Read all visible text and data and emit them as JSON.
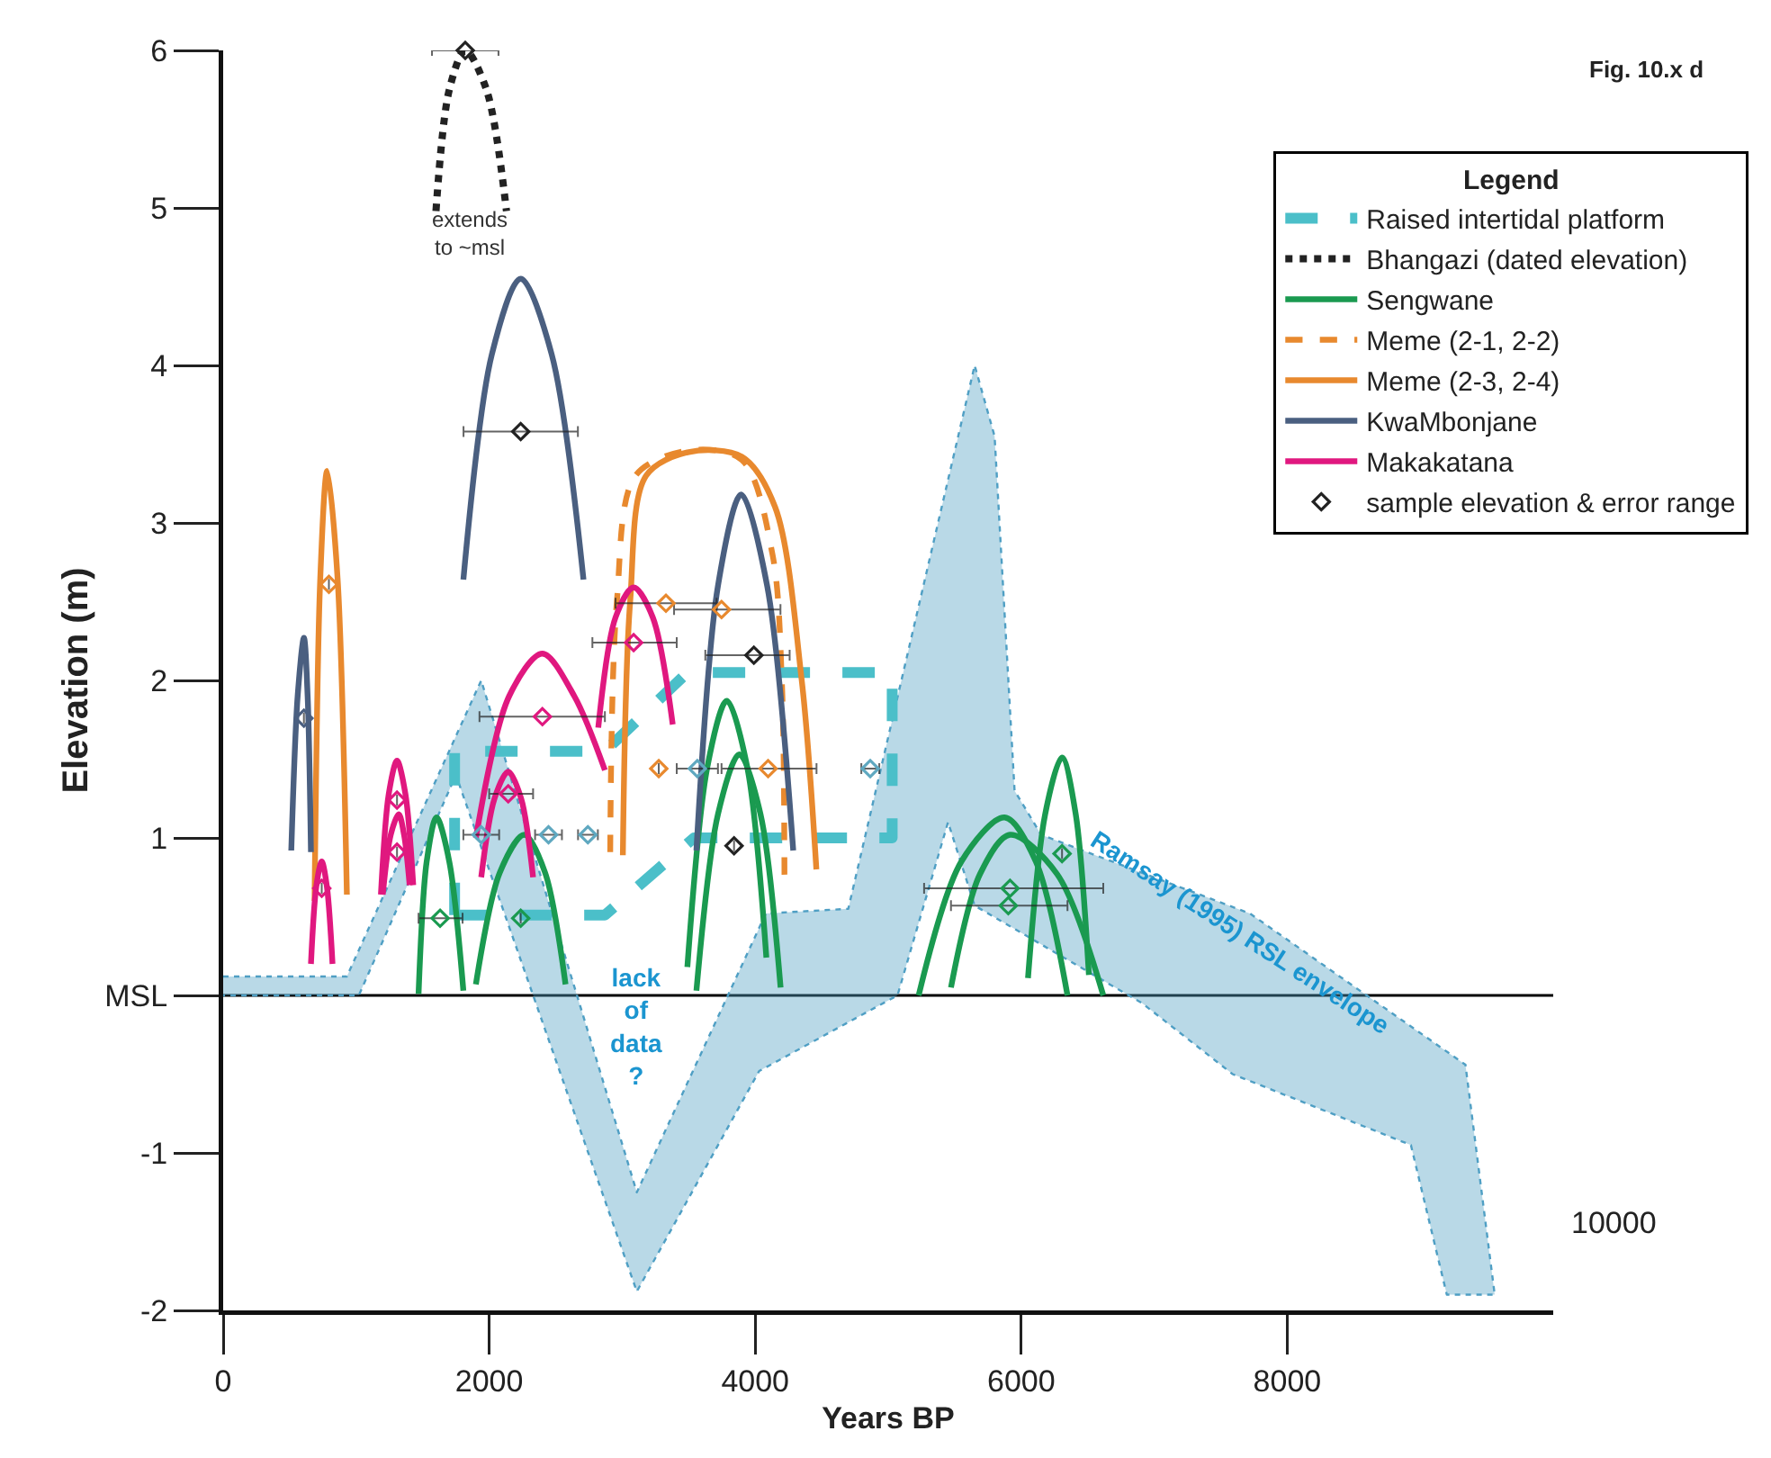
{
  "chart_data": {
    "type": "line",
    "xlabel": "Years BP",
    "ylabel": "Elevation (m)",
    "legend_title": "Legend",
    "legend": "top right",
    "grid": false,
    "line_style": "solid",
    "marker": "none",
    "xlim": [
      0,
      10000
    ],
    "ylim": [
      -2,
      6
    ],
    "xticks": [
      0,
      2000,
      4000,
      6000,
      8000
    ],
    "yticks": [
      -2,
      -1,
      {
        "value": 0,
        "label": "MSL"
      },
      1,
      2,
      3,
      4,
      5,
      6
    ],
    "ref_lines": [
      {
        "axis": "y",
        "value": 0,
        "color": "#000000"
      }
    ],
    "annotations": [
      "extends\nto ~msl",
      "lack\nof\ndata\n?",
      "10000",
      "Fig. 10.x d"
    ],
    "series": [
      {
        "type": "area",
        "name": "Ramsay (1995) RSL envelope",
        "color": "#4f9fc4",
        "line_style": "dotted",
        "x": [
          0,
          930,
          1940,
          3110,
          4080,
          4700,
          5650,
          5800,
          5950,
          6150,
          7720,
          9340,
          9560,
          9200,
          8930,
          7590,
          6910,
          5650,
          5450,
          5070,
          4030,
          3110,
          1750,
          1020,
          0
        ],
        "values": [
          0.12,
          0.12,
          2.0,
          -1.25,
          0.52,
          0.55,
          4.0,
          3.55,
          1.3,
          1.02,
          0.52,
          -0.44,
          -1.9,
          -1.9,
          -0.95,
          -0.5,
          -0.05,
          0.57,
          1.1,
          0,
          -0.48,
          -1.88,
          1.4,
          0,
          0
        ]
      },
      {
        "name": "Raised intertidal platform",
        "color": "#4bbfc9",
        "line_style": "dashed",
        "x": [
          1740,
          1740,
          2870,
          3490,
          5030,
          null,
          1740,
          2870,
          3540,
          5030,
          5030
        ],
        "values": [
          0.51,
          1.55,
          1.55,
          2.05,
          2.05,
          null,
          0.51,
          0.51,
          1.0,
          1.0,
          2.05
        ]
      },
      {
        "name": "Bhangazi (dated elevation)",
        "color": "#222222",
        "line_style": "dotted",
        "x": [
          1600,
          1700,
          1820,
          1980,
          2130
        ],
        "values": [
          4.98,
          5.75,
          6.0,
          5.75,
          4.98
        ]
      },
      {
        "name": "Sengwane",
        "color": "#1a9a50",
        "x": [
          1469,
          1530,
          1604,
          1700,
          1806,
          null,
          1900,
          2080,
          2264,
          2420,
          2574,
          null,
          3490,
          3640,
          3787,
          3940,
          4084,
          null,
          3558,
          3720,
          3881,
          4040,
          4191,
          null,
          5229,
          5550,
          5876,
          6110,
          6348,
          null,
          5472,
          5690,
          5916,
          6270,
          6617,
          null,
          6051,
          6180,
          6307,
          6410,
          6509
        ],
        "values": [
          0.01,
          0.85,
          1.13,
          0.85,
          0.03,
          null,
          0.07,
          0.78,
          1.02,
          0.78,
          0.07,
          null,
          0.18,
          1.45,
          1.87,
          1.45,
          0.24,
          null,
          0.03,
          1.15,
          1.53,
          1.15,
          0.05,
          null,
          0,
          0.85,
          1.13,
          0.85,
          0,
          null,
          0.05,
          0.77,
          1.02,
          0.77,
          0,
          null,
          0.11,
          1.15,
          1.51,
          1.15,
          0.13
        ]
      },
      {
        "name": "Meme (2-1, 2-2)",
        "color": "#e8892e",
        "line_style": "dashed",
        "x": [
          2910,
          2960,
          3100,
          3500,
          3900,
          4130,
          4200,
          4220
        ],
        "values": [
          0.91,
          2.5,
          3.3,
          3.46,
          3.4,
          2.8,
          2.0,
          0.75
        ]
      },
      {
        "name": "Meme (2-3, 2-4)",
        "color": "#e8892e",
        "x": [
          687,
          730,
          782,
          860,
          930,
          null,
          3005,
          3060,
          3180,
          3500,
          3900,
          4150,
          4350,
          4460
        ],
        "values": [
          0.6,
          2.65,
          3.33,
          2.65,
          0.64,
          null,
          0.89,
          2.5,
          3.3,
          3.45,
          3.42,
          3.1,
          2.0,
          0.8
        ]
      },
      {
        "name": "KwaMbonjane",
        "color": "#4a5f80",
        "x": [
          512,
          560,
          607,
          635,
          660,
          null,
          1806,
          2020,
          2237,
          2470,
          2709,
          null,
          3558,
          3720,
          3895,
          4090,
          4286
        ],
        "values": [
          0.92,
          1.9,
          2.27,
          1.9,
          0.91,
          null,
          2.64,
          4.07,
          4.55,
          4.07,
          2.64,
          null,
          0.92,
          2.6,
          3.18,
          2.6,
          0.92
        ]
      },
      {
        "name": "Makakatana",
        "color": "#e0187f",
        "x": [
          660,
          700,
          741,
          780,
          822,
          null,
          1186,
          1245,
          1307,
          1370,
          1429,
          null,
          1200,
          1260,
          1320,
          1360,
          1402,
          null,
          1940,
          2040,
          2143,
          2240,
          2330,
          null,
          1900,
          2150,
          2400,
          2640,
          2870,
          null,
          2820,
          2950,
          3086,
          3230,
          3380
        ],
        "values": [
          0.2,
          0.69,
          0.85,
          0.69,
          0.2,
          null,
          0.64,
          1.28,
          1.49,
          1.28,
          0.7,
          null,
          0.64,
          1.02,
          1.15,
          1.02,
          0.7,
          null,
          0.75,
          1.25,
          1.42,
          1.25,
          0.75,
          null,
          1.0,
          1.9,
          2.17,
          1.9,
          1.43,
          null,
          1.7,
          2.4,
          2.59,
          2.4,
          1.72
        ]
      },
      {
        "type": "scatter",
        "name": "sample elevation & error range",
        "marker": "diamond",
        "color": "#222222",
        "x": [
          1820,
          2237,
          3990,
          3841,
          607,
          795,
          3329,
          3747,
          3275,
          4097,
          2400,
          3086,
          1307,
          1307,
          741,
          2143,
          1631,
          2237,
          5916,
          5903,
          6307,
          1940,
          2446,
          2742,
          3565,
          4865
        ],
        "values": [
          6.0,
          3.58,
          2.16,
          0.95,
          1.76,
          2.61,
          2.49,
          2.45,
          1.44,
          1.44,
          1.77,
          2.24,
          1.24,
          0.91,
          0.68,
          1.28,
          0.49,
          0.49,
          0.68,
          0.57,
          0.9,
          1.02,
          1.02,
          1.02,
          1.44,
          1.44
        ],
        "colors": [
          "#222222",
          "#222222",
          "#222222",
          "#222222",
          "#4a5f80",
          "#e8892e",
          "#e8892e",
          "#e8892e",
          "#e8892e",
          "#e8892e",
          "#e0187f",
          "#e0187f",
          "#e0187f",
          "#e0187f",
          "#e0187f",
          "#e0187f",
          "#1a9a50",
          "#1a9a50",
          "#1a9a50",
          "#1a9a50",
          "#1a9a50",
          "#5fa8c0",
          "#5fa8c0",
          "#5fa8c0",
          "#5fa8c0",
          "#5fa8c0"
        ],
        "xerrors": [
          [
            1570,
            2070
          ],
          [
            1807,
            2667
          ],
          [
            3625,
            4259
          ],
          null,
          null,
          null,
          [
            2950,
            3710
          ],
          [
            3390,
            4190
          ],
          null,
          [
            3747,
            4461
          ],
          [
            1927,
            2870
          ],
          [
            2776,
            3410
          ],
          null,
          null,
          null,
          [
            2000,
            2330
          ],
          [
            1469,
            1800
          ],
          null,
          [
            5270,
            6617
          ],
          [
            5472,
            6348
          ],
          null,
          [
            1806,
            2075
          ],
          [
            2345,
            2547
          ],
          [
            2668,
            2817
          ],
          [
            3410,
            3720
          ],
          [
            4798,
            4933
          ]
        ]
      }
    ]
  }
}
